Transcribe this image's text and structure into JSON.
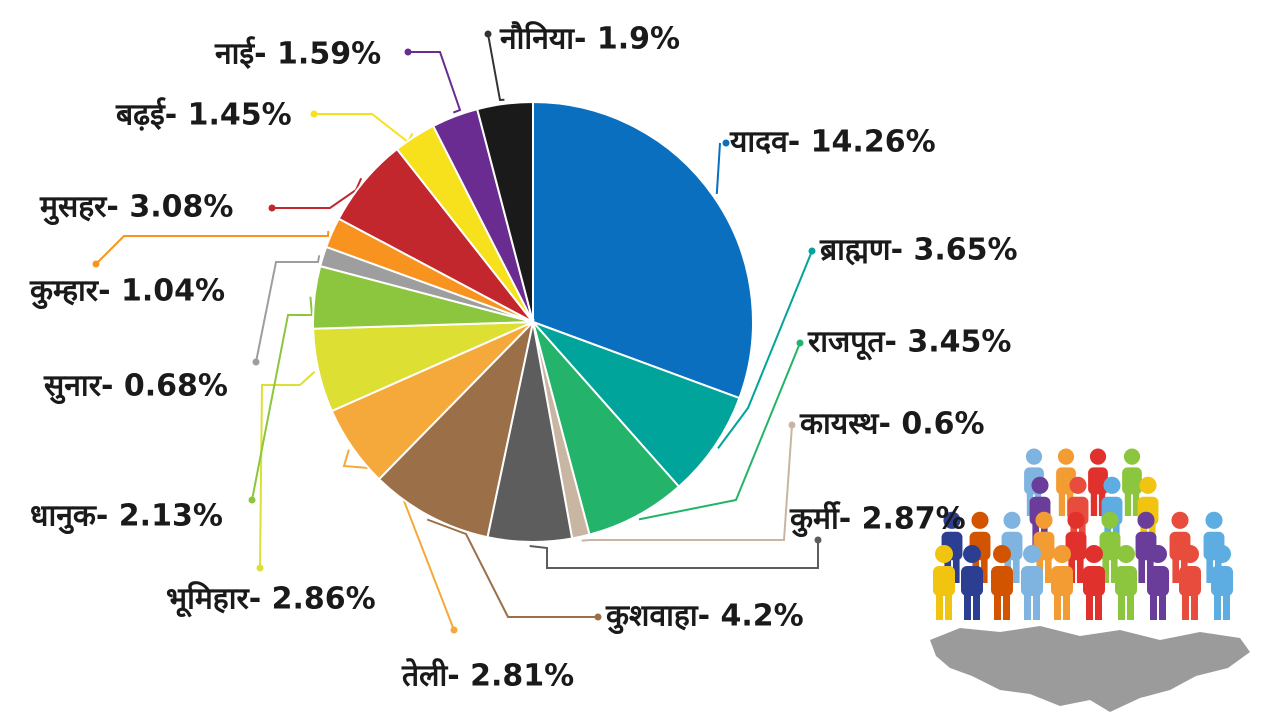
{
  "chart_data": {
    "type": "pie",
    "title": "",
    "unit": "%",
    "slices": [
      {
        "name": "यादव",
        "value": 14.26,
        "label": "यादव- 14.26%",
        "color": "#0a6fbf"
      },
      {
        "name": "ब्राह्मण",
        "value": 3.65,
        "label": "ब्राह्मण- 3.65%",
        "color": "#00a49a"
      },
      {
        "name": "राजपूत",
        "value": 3.45,
        "label": "राजपूत- 3.45%",
        "color": "#23b36b"
      },
      {
        "name": "कायस्थ",
        "value": 0.6,
        "label": "कायस्थ- 0.6%",
        "color": "#c8b6a2"
      },
      {
        "name": "कुर्मी",
        "value": 2.87,
        "label": "कुर्मी- 2.87%",
        "color": "#5d5d5d"
      },
      {
        "name": "कुशवाहा",
        "value": 4.2,
        "label": "कुशवाहा- 4.2%",
        "color": "#9b7048"
      },
      {
        "name": "तेली",
        "value": 2.81,
        "label": "तेली- 2.81%",
        "color": "#f6a93b"
      },
      {
        "name": "भूमिहार",
        "value": 2.86,
        "label": "भूमिहार- 2.86%",
        "color": "#dde032"
      },
      {
        "name": "धानुक",
        "value": 2.13,
        "label": "धानुक- 2.13%",
        "color": "#8cc63f"
      },
      {
        "name": "सुनार",
        "value": 0.68,
        "label": "सुनार- 0.68%",
        "color": "#9e9e9e"
      },
      {
        "name": "कुम्हार",
        "value": 1.04,
        "label": "कुम्हार- 1.04%",
        "color": "#f7931e"
      },
      {
        "name": "मुसहर",
        "value": 3.08,
        "label": "मुसहर- 3.08%",
        "color": "#c1272d"
      },
      {
        "name": "बढ़ई",
        "value": 1.45,
        "label": "बढ़ई- 1.45%",
        "color": "#f7e01c"
      },
      {
        "name": "नाई",
        "value": 1.59,
        "label": "नाई- 1.59%",
        "color": "#6a2c91"
      },
      {
        "name": "नौनिया",
        "value": 1.9,
        "label": "नौनिया- 1.9%",
        "color": "#1a1a1a"
      }
    ]
  },
  "illustration": {
    "icon": "crowd-of-people-on-map-icon",
    "people_colors": [
      "#7fb3e0",
      "#f39c34",
      "#e0312d",
      "#8cc63f",
      "#6a3d9a",
      "#e74c3c",
      "#5dade2",
      "#f1c40f",
      "#2c3e91",
      "#d35400"
    ],
    "map_color": "#8a8a8a"
  }
}
